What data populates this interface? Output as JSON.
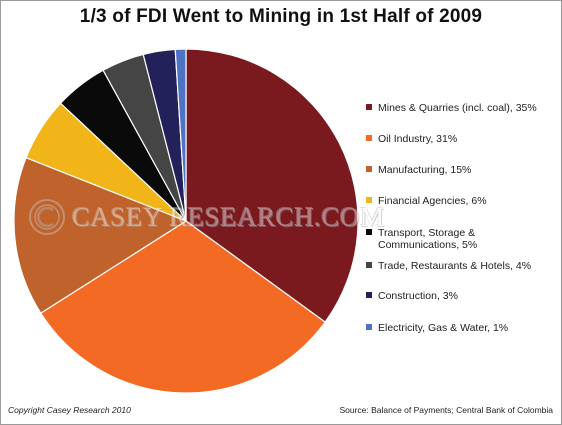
{
  "chart_data": {
    "type": "pie",
    "title": "1/3 of FDI Went to Mining in 1st Half of 2009",
    "slices": [
      {
        "label": "Mines & Quarries (incl. coal), 35%",
        "value": 35,
        "color": "#7a1a1f"
      },
      {
        "label": "Oil Industry, 31%",
        "value": 31,
        "color": "#f26a24"
      },
      {
        "label": "Manufacturing, 15%",
        "value": 15,
        "color": "#c0622b"
      },
      {
        "label": "Financial Agencies, 6%",
        "value": 6,
        "color": "#f2b519"
      },
      {
        "label": "Transport, Storage & Communications, 5%",
        "value": 5,
        "color": "#0a0a0a"
      },
      {
        "label": "Trade, Restaurants & Hotels, 4%",
        "value": 4,
        "color": "#454545"
      },
      {
        "label": "Construction, 3%",
        "value": 3,
        "color": "#22215a"
      },
      {
        "label": "Electricity, Gas & Water, 1%",
        "value": 1,
        "color": "#4e73c4"
      }
    ],
    "legend_position": "right"
  },
  "watermark": {
    "text": "CASEY RESEARCH.COM"
  },
  "footer": {
    "copyright": "Copyright Casey Research 2010",
    "source": "Source: Balance of Payments; Central Bank of Colombia"
  }
}
